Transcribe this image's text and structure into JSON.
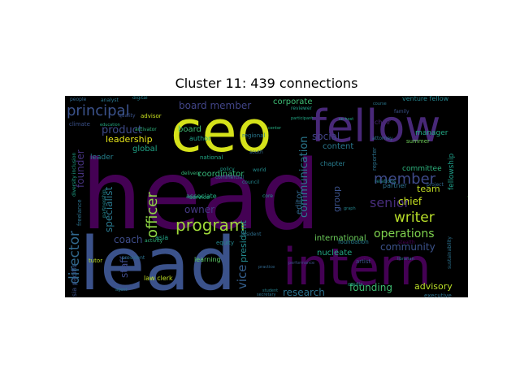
{
  "title": "Cluster 11: 439 connections",
  "palette": [
    "#440154",
    "#3b528b",
    "#21918c",
    "#5ec962",
    "#fde725"
  ],
  "words": [
    {
      "text": "head",
      "color": "#440154"
    },
    {
      "text": "lead",
      "color": "#3b528b"
    },
    {
      "text": "intern",
      "color": "#440154"
    },
    {
      "text": "ceo",
      "color": "#d5e21a"
    },
    {
      "text": "fellow",
      "color": "#482878"
    },
    {
      "text": "principal",
      "color": "#3b528b"
    },
    {
      "text": "program",
      "color": "#a0da39"
    },
    {
      "text": "writer",
      "color": "#b8de29"
    },
    {
      "text": "officer",
      "color": "#8fd744"
    },
    {
      "text": "member",
      "color": "#3e4a89"
    },
    {
      "text": "senior",
      "color": "#472d7b"
    },
    {
      "text": "director",
      "color": "#31688e"
    },
    {
      "text": "operations",
      "color": "#7fd34e"
    },
    {
      "text": "research",
      "color": "#2c728e"
    },
    {
      "text": "founding",
      "color": "#3fbc73"
    },
    {
      "text": "advisory",
      "color": "#bade28"
    },
    {
      "text": "communication",
      "color": "#2a788e"
    },
    {
      "text": "vice",
      "color": "#355f8d"
    },
    {
      "text": "president",
      "color": "#23898e"
    },
    {
      "text": "board member",
      "color": "#414487"
    },
    {
      "text": "community",
      "color": "#3b528b"
    },
    {
      "text": "coach",
      "color": "#3e4c8a"
    },
    {
      "text": "team",
      "color": "#c2df23"
    },
    {
      "text": "chief",
      "color": "#c5e021"
    },
    {
      "text": "leadership",
      "color": "#e5e419"
    },
    {
      "text": "product",
      "color": "#3e4a89"
    },
    {
      "text": "social",
      "color": "#414487"
    },
    {
      "text": "international",
      "color": "#6ccd5a"
    },
    {
      "text": "specialist",
      "color": "#2a788e"
    },
    {
      "text": "founder",
      "color": "#46327e"
    },
    {
      "text": "staff",
      "color": "#3e4a89"
    },
    {
      "text": "group",
      "color": "#3b528b"
    },
    {
      "text": "editor",
      "color": "#31688e"
    },
    {
      "text": "coordinator",
      "color": "#35b779"
    },
    {
      "text": "owner",
      "color": "#443983"
    },
    {
      "text": "content",
      "color": "#2a788e"
    },
    {
      "text": "global",
      "color": "#20a386"
    },
    {
      "text": "manager",
      "color": "#22a884"
    },
    {
      "text": "assistant",
      "color": "#75d054"
    },
    {
      "text": "fellowship",
      "color": "#1f9e89"
    },
    {
      "text": "committee",
      "color": "#2db27d"
    },
    {
      "text": "partner",
      "color": "#2d708e"
    },
    {
      "text": "corporate",
      "color": "#3dbc74"
    },
    {
      "text": "board",
      "color": "#3fbc73"
    },
    {
      "text": "nucleate",
      "color": "#22a884"
    },
    {
      "text": "chapter",
      "color": "#287c8e"
    },
    {
      "text": "asia",
      "color": "#20a486"
    },
    {
      "text": "asia pacific",
      "color": "#3b528b"
    },
    {
      "text": "leader",
      "color": "#26828e"
    },
    {
      "text": "executive",
      "color": "#2c728e"
    },
    {
      "text": "venture fellow",
      "color": "#25858e"
    },
    {
      "text": "associate",
      "color": "#25ab82"
    },
    {
      "text": "law clerk",
      "color": "#c0df25"
    },
    {
      "text": "learning",
      "color": "#5cc863"
    },
    {
      "text": "tutor",
      "color": "#bddf26"
    },
    {
      "text": "service",
      "color": "#26ad81"
    },
    {
      "text": "equity",
      "color": "#24878e"
    },
    {
      "text": "chair",
      "color": "#482475"
    },
    {
      "text": "reporter",
      "color": "#2c728e"
    },
    {
      "text": "artist",
      "color": "#3b528b"
    },
    {
      "text": "foundation",
      "color": "#287d8e"
    },
    {
      "text": "summer",
      "color": "#6ece58"
    },
    {
      "text": "advisor",
      "color": "#cae11f"
    },
    {
      "text": "author",
      "color": "#1fa088"
    },
    {
      "text": "national",
      "color": "#22a785"
    },
    {
      "text": "regional",
      "color": "#2a788e"
    },
    {
      "text": "policy",
      "color": "#1f9a8a"
    },
    {
      "text": "world",
      "color": "#228c8d"
    },
    {
      "text": "commercial",
      "color": "#2c728e"
    },
    {
      "text": "south",
      "color": "#31688e"
    },
    {
      "text": "council",
      "color": "#24868e"
    },
    {
      "text": "resident",
      "color": "#2e6f8e"
    },
    {
      "text": "core",
      "color": "#1f988b"
    },
    {
      "text": "activity",
      "color": "#31b57b"
    },
    {
      "text": "president",
      "color": "#2c728e"
    },
    {
      "text": "delivery",
      "color": "#35b779"
    },
    {
      "text": "freelance",
      "color": "#2c728e"
    },
    {
      "text": "partnership",
      "color": "#23898e"
    },
    {
      "text": "diversity inclusion",
      "color": "#1fa187"
    },
    {
      "text": "climate",
      "color": "#3b528b"
    },
    {
      "text": "digital",
      "color": "#26828e"
    },
    {
      "text": "analyst",
      "color": "#2a788e"
    },
    {
      "text": "people",
      "color": "#31688e"
    },
    {
      "text": "quality",
      "color": "#3b528b"
    },
    {
      "text": "education",
      "color": "#25ab82"
    },
    {
      "text": "activator",
      "color": "#2db27d"
    },
    {
      "text": "reviewer",
      "color": "#1fa088"
    },
    {
      "text": "participant",
      "color": "#22a785"
    },
    {
      "text": "center",
      "color": "#26ad81"
    },
    {
      "text": "attorney",
      "color": "#2c728e"
    },
    {
      "text": "relations",
      "color": "#23898e"
    },
    {
      "text": "project",
      "color": "#31688e"
    },
    {
      "text": "stealth",
      "color": "#440154"
    },
    {
      "text": "librarian",
      "color": "#2a788e"
    },
    {
      "text": "graph",
      "color": "#24868e"
    },
    {
      "text": "sustainability",
      "color": "#2c728e"
    },
    {
      "text": "media",
      "color": "#1fa187"
    },
    {
      "text": "family",
      "color": "#3b528b"
    },
    {
      "text": "course",
      "color": "#2a788e"
    },
    {
      "text": "co host",
      "color": "#22a785"
    },
    {
      "text": "practice",
      "color": "#31688e"
    },
    {
      "text": "performance",
      "color": "#3b528b"
    },
    {
      "text": "student",
      "color": "#26828e"
    },
    {
      "text": "secretary",
      "color": "#2c728e"
    },
    {
      "text": "agent",
      "color": "#2a788e"
    }
  ]
}
